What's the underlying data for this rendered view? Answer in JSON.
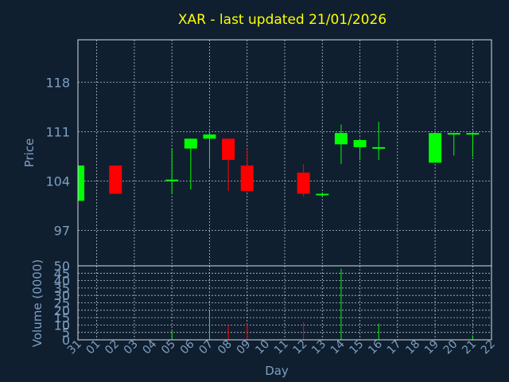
{
  "chart_data": {
    "type": "candlestick",
    "title": "XAR - last updated 21/01/2026",
    "colors": {
      "background": "#0f1f30",
      "up": "#00ff00",
      "down": "#ff0000",
      "text": "#7f9fc0",
      "title": "#ffff00"
    },
    "price_panel": {
      "ylabel": "Price",
      "ylim": [
        92,
        124
      ],
      "yticks": [
        97,
        104,
        111,
        118
      ]
    },
    "volume_panel": {
      "ylabel": "Volume (0000)",
      "ylim": [
        0,
        50
      ],
      "yticks": [
        0,
        5,
        10,
        15,
        20,
        25,
        30,
        35,
        40,
        45,
        50
      ]
    },
    "xlabel": "Day",
    "categories": [
      "31",
      "01",
      "02",
      "03",
      "04",
      "05",
      "06",
      "07",
      "08",
      "09",
      "10",
      "11",
      "12",
      "13",
      "14",
      "15",
      "16",
      "17",
      "18",
      "19",
      "20",
      "21",
      "22"
    ],
    "candles": [
      {
        "i": 0,
        "open": 101.2,
        "high": 106.2,
        "low": 101.2,
        "close": 106.2,
        "volume": 0
      },
      {
        "i": 2,
        "open": 106.2,
        "high": 106.2,
        "low": 102.2,
        "close": 102.2,
        "volume": 0
      },
      {
        "i": 5,
        "open": 104.0,
        "high": 108.6,
        "low": 102.2,
        "close": 104.2,
        "volume": 6
      },
      {
        "i": 6,
        "open": 108.6,
        "high": 110.0,
        "low": 102.8,
        "close": 110.0,
        "volume": 0
      },
      {
        "i": 7,
        "open": 110.0,
        "high": 110.8,
        "low": 106.0,
        "close": 110.6,
        "volume": 19
      },
      {
        "i": 8,
        "open": 110.0,
        "high": 110.0,
        "low": 102.6,
        "close": 107.0,
        "volume": 10
      },
      {
        "i": 9,
        "open": 106.2,
        "high": 108.6,
        "low": 102.6,
        "close": 102.6,
        "volume": 11
      },
      {
        "i": 12,
        "open": 105.2,
        "high": 106.4,
        "low": 101.8,
        "close": 102.2,
        "volume": 12
      },
      {
        "i": 13,
        "open": 102.0,
        "high": 102.4,
        "low": 101.8,
        "close": 102.2,
        "volume": 0
      },
      {
        "i": 14,
        "open": 109.2,
        "high": 112.0,
        "low": 106.4,
        "close": 110.8,
        "volume": 48
      },
      {
        "i": 15,
        "open": 108.8,
        "high": 109.8,
        "low": 107.0,
        "close": 109.8,
        "volume": 0
      },
      {
        "i": 16,
        "open": 108.6,
        "high": 112.4,
        "low": 107.0,
        "close": 108.8,
        "volume": 11
      },
      {
        "i": 19,
        "open": 106.6,
        "high": 110.8,
        "low": 106.6,
        "close": 110.8,
        "volume": 0
      },
      {
        "i": 20,
        "open": 110.6,
        "high": 110.8,
        "low": 107.6,
        "close": 110.8,
        "volume": 0
      },
      {
        "i": 21,
        "open": 110.6,
        "high": 110.8,
        "low": 107.4,
        "close": 110.8,
        "volume": 3
      }
    ]
  }
}
